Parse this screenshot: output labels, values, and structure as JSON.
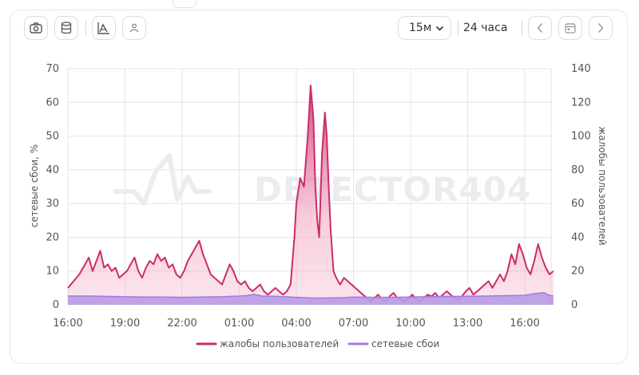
{
  "toolbar": {
    "buttons": [
      {
        "icon": "camera-icon"
      },
      {
        "icon": "database-icon"
      },
      {
        "icon": "chart-area-icon"
      },
      {
        "icon": "user-icon"
      }
    ],
    "interval": {
      "value": "15м"
    },
    "period_label": "24 часа",
    "nav": [
      {
        "icon": "chevron-left-icon"
      },
      {
        "icon": "calendar-icon"
      },
      {
        "icon": "chevron-right-icon"
      }
    ]
  },
  "watermark": "DETECTOR404",
  "colors": {
    "complaints": "#cc2c6a",
    "complaints_fill": "#f4b6cc",
    "failures": "#a37be0",
    "failures_fill": "#b99be6",
    "grid": "#e4e4ea"
  },
  "chart_data": {
    "type": "area",
    "title": "",
    "xlabel": "",
    "x_ticks": [
      "16:00",
      "19:00",
      "22:00",
      "01:00",
      "04:00",
      "07:00",
      "10:00",
      "13:00",
      "16:00"
    ],
    "x_range_hours": [
      0,
      25.5
    ],
    "y_left": {
      "label": "сетевые сбои, %",
      "range": [
        0,
        70
      ],
      "ticks": [
        "0",
        "10",
        "20",
        "30",
        "40",
        "50",
        "60",
        "70"
      ]
    },
    "y_right": {
      "label": "жалобы пользователей",
      "range": [
        0,
        140
      ],
      "ticks": [
        "0",
        "20",
        "40",
        "60",
        "80",
        "100",
        "120",
        "140"
      ]
    },
    "legend": {
      "placement": "bottom",
      "items": [
        "жалобы пользователей",
        "сетевые сбои"
      ]
    },
    "series": [
      {
        "name": "жалобы пользователей",
        "axis": "right",
        "points": [
          [
            0,
            10
          ],
          [
            0.3,
            14
          ],
          [
            0.6,
            18
          ],
          [
            0.9,
            24
          ],
          [
            1.1,
            28
          ],
          [
            1.3,
            20
          ],
          [
            1.5,
            26
          ],
          [
            1.7,
            32
          ],
          [
            1.9,
            22
          ],
          [
            2.1,
            24
          ],
          [
            2.3,
            20
          ],
          [
            2.5,
            22
          ],
          [
            2.7,
            16
          ],
          [
            2.9,
            18
          ],
          [
            3.1,
            20
          ],
          [
            3.3,
            24
          ],
          [
            3.5,
            28
          ],
          [
            3.7,
            20
          ],
          [
            3.9,
            16
          ],
          [
            4.1,
            22
          ],
          [
            4.3,
            26
          ],
          [
            4.5,
            24
          ],
          [
            4.7,
            30
          ],
          [
            4.9,
            26
          ],
          [
            5.1,
            28
          ],
          [
            5.3,
            22
          ],
          [
            5.5,
            24
          ],
          [
            5.7,
            18
          ],
          [
            5.9,
            16
          ],
          [
            6.1,
            20
          ],
          [
            6.3,
            26
          ],
          [
            6.5,
            30
          ],
          [
            6.7,
            34
          ],
          [
            6.9,
            38
          ],
          [
            7.1,
            30
          ],
          [
            7.3,
            24
          ],
          [
            7.5,
            18
          ],
          [
            7.7,
            16
          ],
          [
            7.9,
            14
          ],
          [
            8.1,
            12
          ],
          [
            8.3,
            18
          ],
          [
            8.5,
            24
          ],
          [
            8.7,
            20
          ],
          [
            8.9,
            14
          ],
          [
            9.1,
            12
          ],
          [
            9.3,
            14
          ],
          [
            9.5,
            10
          ],
          [
            9.7,
            8
          ],
          [
            9.9,
            10
          ],
          [
            10.1,
            12
          ],
          [
            10.3,
            8
          ],
          [
            10.5,
            6
          ],
          [
            10.7,
            8
          ],
          [
            10.9,
            10
          ],
          [
            11.1,
            8
          ],
          [
            11.3,
            6
          ],
          [
            11.5,
            8
          ],
          [
            11.7,
            12
          ],
          [
            11.9,
            40
          ],
          [
            12.0,
            60
          ],
          [
            12.2,
            75
          ],
          [
            12.4,
            70
          ],
          [
            12.6,
            100
          ],
          [
            12.75,
            130
          ],
          [
            12.9,
            110
          ],
          [
            13.0,
            70
          ],
          [
            13.1,
            50
          ],
          [
            13.2,
            40
          ],
          [
            13.35,
            90
          ],
          [
            13.5,
            114
          ],
          [
            13.6,
            100
          ],
          [
            13.7,
            70
          ],
          [
            13.8,
            45
          ],
          [
            13.95,
            20
          ],
          [
            14.1,
            16
          ],
          [
            14.3,
            12
          ],
          [
            14.5,
            16
          ],
          [
            14.7,
            14
          ],
          [
            14.9,
            12
          ],
          [
            15.1,
            10
          ],
          [
            15.3,
            8
          ],
          [
            15.5,
            6
          ],
          [
            15.7,
            4
          ],
          [
            15.9,
            2
          ],
          [
            16.1,
            4
          ],
          [
            16.3,
            6
          ],
          [
            16.5,
            3
          ],
          [
            16.7,
            2
          ],
          [
            16.9,
            5
          ],
          [
            17.1,
            7
          ],
          [
            17.3,
            4
          ],
          [
            17.5,
            3
          ],
          [
            17.7,
            2
          ],
          [
            17.9,
            4
          ],
          [
            18.1,
            6
          ],
          [
            18.3,
            3
          ],
          [
            18.5,
            2
          ],
          [
            18.7,
            4
          ],
          [
            18.9,
            6
          ],
          [
            19.1,
            5
          ],
          [
            19.3,
            7
          ],
          [
            19.5,
            4
          ],
          [
            19.7,
            6
          ],
          [
            19.9,
            8
          ],
          [
            20.1,
            6
          ],
          [
            20.3,
            4
          ],
          [
            20.5,
            3
          ],
          [
            20.7,
            5
          ],
          [
            20.9,
            8
          ],
          [
            21.1,
            10
          ],
          [
            21.3,
            6
          ],
          [
            21.5,
            8
          ],
          [
            21.7,
            10
          ],
          [
            21.9,
            12
          ],
          [
            22.1,
            14
          ],
          [
            22.3,
            10
          ],
          [
            22.5,
            14
          ],
          [
            22.7,
            18
          ],
          [
            22.9,
            14
          ],
          [
            23.1,
            20
          ],
          [
            23.3,
            30
          ],
          [
            23.5,
            24
          ],
          [
            23.7,
            36
          ],
          [
            23.9,
            30
          ],
          [
            24.1,
            22
          ],
          [
            24.3,
            18
          ],
          [
            24.5,
            26
          ],
          [
            24.7,
            36
          ],
          [
            24.9,
            28
          ],
          [
            25.1,
            22
          ],
          [
            25.3,
            18
          ],
          [
            25.5,
            20
          ]
        ]
      },
      {
        "name": "сетевые сбои",
        "axis": "left",
        "points": [
          [
            0,
            2.6
          ],
          [
            1,
            2.6
          ],
          [
            2,
            2.5
          ],
          [
            3,
            2.4
          ],
          [
            4,
            2.3
          ],
          [
            5,
            2.3
          ],
          [
            6,
            2.2
          ],
          [
            7,
            2.3
          ],
          [
            8,
            2.4
          ],
          [
            9,
            2.6
          ],
          [
            9.5,
            2.8
          ],
          [
            9.8,
            3.1
          ],
          [
            10.2,
            2.6
          ],
          [
            11,
            2.5
          ],
          [
            12,
            2.2
          ],
          [
            12.8,
            2.0
          ],
          [
            13.5,
            2.0
          ],
          [
            14.5,
            2.1
          ],
          [
            15,
            2.3
          ],
          [
            16,
            2.2
          ],
          [
            17,
            2.2
          ],
          [
            18,
            2.3
          ],
          [
            19,
            2.4
          ],
          [
            20,
            2.5
          ],
          [
            21,
            2.5
          ],
          [
            22,
            2.6
          ],
          [
            23,
            2.7
          ],
          [
            24,
            2.8
          ],
          [
            24.5,
            3.3
          ],
          [
            25,
            3.6
          ],
          [
            25.3,
            2.8
          ],
          [
            25.5,
            2.6
          ]
        ]
      }
    ]
  }
}
